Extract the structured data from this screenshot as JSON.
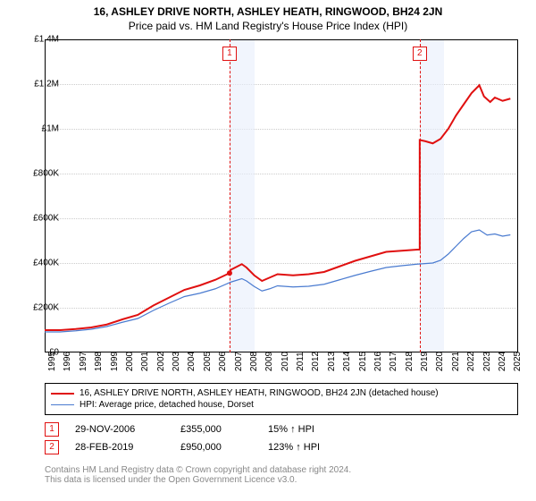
{
  "title": "16, ASHLEY DRIVE NORTH, ASHLEY HEATH, RINGWOOD, BH24 2JN",
  "subtitle": "Price paid vs. HM Land Registry's House Price Index (HPI)",
  "chart": {
    "type": "line",
    "background_color": "#ffffff",
    "grid_color": "#cccccc",
    "shade_color": "#e8eefb",
    "xlim": [
      1995,
      2025.5
    ],
    "ylim": [
      0,
      1400000
    ],
    "ytick_step": 200000,
    "yticks": [
      "£0",
      "£200K",
      "£400K",
      "£600K",
      "£800K",
      "£1M",
      "£1.2M",
      "£1.4M"
    ],
    "xticks": [
      1995,
      1996,
      1997,
      1998,
      1999,
      2000,
      2001,
      2002,
      2003,
      2004,
      2005,
      2006,
      2007,
      2008,
      2009,
      2010,
      2011,
      2012,
      2013,
      2014,
      2015,
      2016,
      2017,
      2018,
      2019,
      2020,
      2021,
      2022,
      2023,
      2024,
      2025
    ],
    "series": [
      {
        "name": "property",
        "label": "16, ASHLEY DRIVE NORTH, ASHLEY HEATH, RINGWOOD, BH24 2JN (detached house)",
        "color": "#e01010",
        "width": 2,
        "data": [
          [
            1995,
            100000
          ],
          [
            1996,
            100000
          ],
          [
            1997,
            105000
          ],
          [
            1998,
            112000
          ],
          [
            1999,
            125000
          ],
          [
            2000,
            148000
          ],
          [
            2001,
            168000
          ],
          [
            2002,
            210000
          ],
          [
            2003,
            245000
          ],
          [
            2004,
            280000
          ],
          [
            2005,
            300000
          ],
          [
            2006,
            325000
          ],
          [
            2006.91,
            355000
          ],
          [
            2007,
            370000
          ],
          [
            2007.7,
            395000
          ],
          [
            2008,
            380000
          ],
          [
            2008.5,
            345000
          ],
          [
            2009,
            320000
          ],
          [
            2009.5,
            335000
          ],
          [
            2010,
            350000
          ],
          [
            2011,
            345000
          ],
          [
            2012,
            350000
          ],
          [
            2013,
            360000
          ],
          [
            2014,
            385000
          ],
          [
            2015,
            410000
          ],
          [
            2016,
            430000
          ],
          [
            2017,
            450000
          ],
          [
            2018,
            455000
          ],
          [
            2019,
            460000
          ],
          [
            2019.16,
            460000
          ],
          [
            2019.16,
            950000
          ],
          [
            2019.5,
            945000
          ],
          [
            2020,
            935000
          ],
          [
            2020.5,
            955000
          ],
          [
            2021,
            1000000
          ],
          [
            2021.5,
            1060000
          ],
          [
            2022,
            1110000
          ],
          [
            2022.5,
            1160000
          ],
          [
            2023,
            1195000
          ],
          [
            2023.3,
            1145000
          ],
          [
            2023.7,
            1120000
          ],
          [
            2024,
            1140000
          ],
          [
            2024.5,
            1125000
          ],
          [
            2025,
            1135000
          ]
        ]
      },
      {
        "name": "hpi",
        "label": "HPI: Average price, detached house, Dorset",
        "color": "#4a7bd0",
        "width": 1.2,
        "data": [
          [
            1995,
            92000
          ],
          [
            1996,
            92000
          ],
          [
            1997,
            97000
          ],
          [
            1998,
            104000
          ],
          [
            1999,
            116000
          ],
          [
            2000,
            135000
          ],
          [
            2001,
            152000
          ],
          [
            2002,
            188000
          ],
          [
            2003,
            220000
          ],
          [
            2004,
            250000
          ],
          [
            2005,
            265000
          ],
          [
            2006,
            285000
          ],
          [
            2007,
            315000
          ],
          [
            2007.7,
            330000
          ],
          [
            2008,
            320000
          ],
          [
            2008.5,
            295000
          ],
          [
            2009,
            275000
          ],
          [
            2009.5,
            285000
          ],
          [
            2010,
            298000
          ],
          [
            2011,
            293000
          ],
          [
            2012,
            296000
          ],
          [
            2013,
            305000
          ],
          [
            2014,
            325000
          ],
          [
            2015,
            345000
          ],
          [
            2016,
            363000
          ],
          [
            2017,
            380000
          ],
          [
            2018,
            388000
          ],
          [
            2019,
            395000
          ],
          [
            2020,
            400000
          ],
          [
            2020.5,
            412000
          ],
          [
            2021,
            440000
          ],
          [
            2021.5,
            475000
          ],
          [
            2022,
            510000
          ],
          [
            2022.5,
            540000
          ],
          [
            2023,
            548000
          ],
          [
            2023.5,
            525000
          ],
          [
            2024,
            530000
          ],
          [
            2024.5,
            520000
          ],
          [
            2025,
            526000
          ]
        ]
      }
    ],
    "markers": [
      {
        "n": "1",
        "x": 2006.91,
        "shade_to": 2008.5
      },
      {
        "n": "2",
        "x": 2019.16,
        "shade_to": 2020.7
      }
    ]
  },
  "sales": [
    {
      "n": "1",
      "date": "29-NOV-2006",
      "price": "£355,000",
      "pct": "15% ↑ HPI"
    },
    {
      "n": "2",
      "date": "28-FEB-2019",
      "price": "£950,000",
      "pct": "123% ↑ HPI"
    }
  ],
  "footer": {
    "line1": "Contains HM Land Registry data © Crown copyright and database right 2024.",
    "line2": "This data is licensed under the Open Government Licence v3.0."
  },
  "font": {
    "title_size": 12,
    "label_size": 10,
    "footer_color": "#888888"
  }
}
